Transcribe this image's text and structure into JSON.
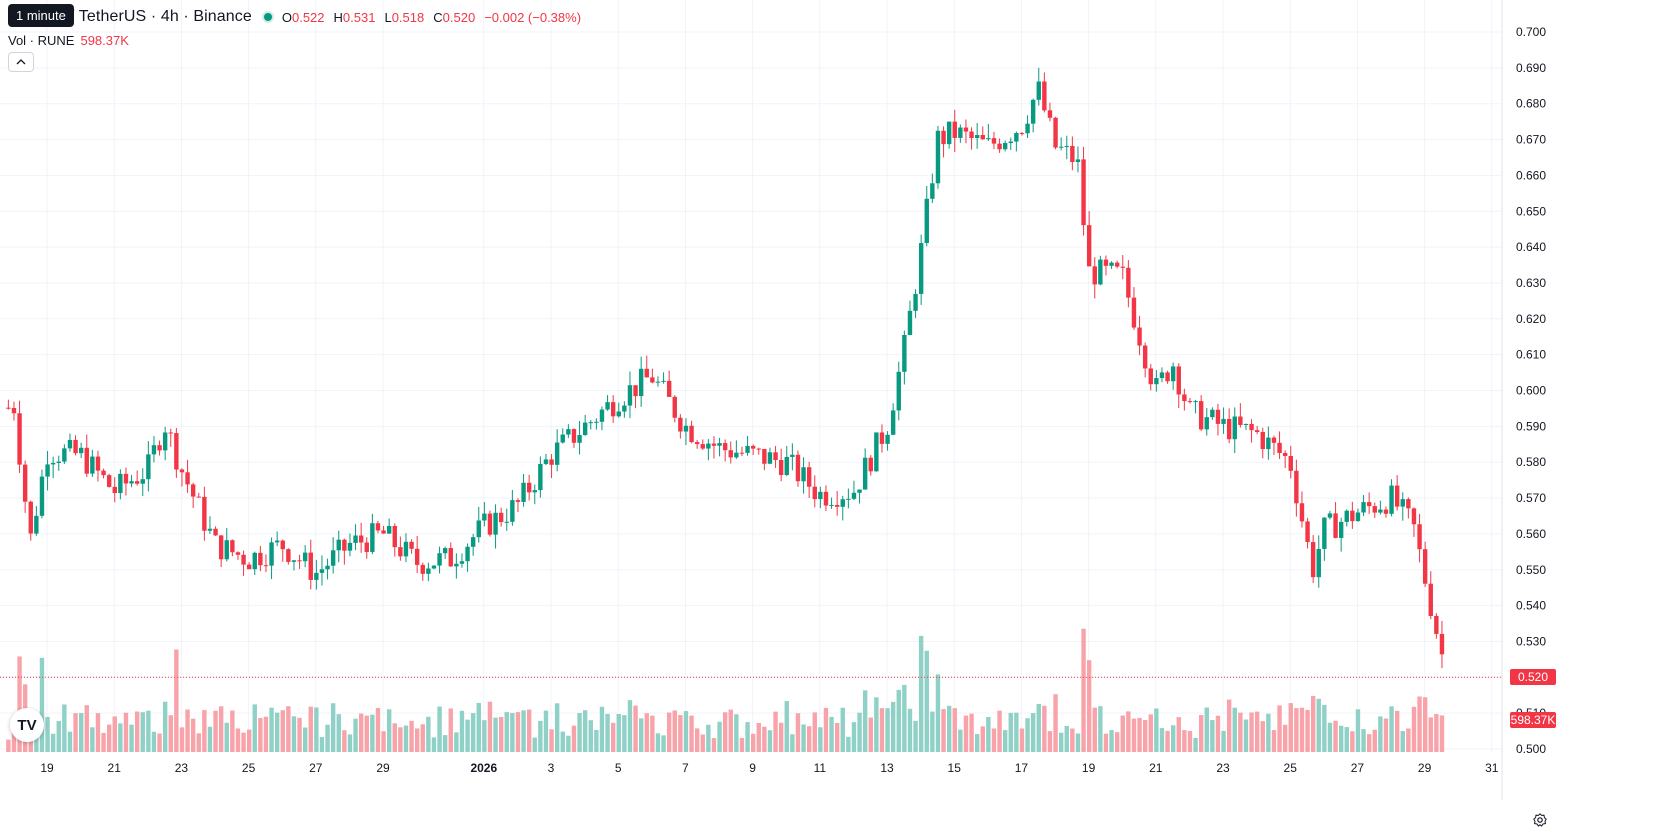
{
  "header": {
    "pair_title": "/ TetherUS · 4h · Binance",
    "tooltip": "1 minute",
    "ohlc": [
      {
        "key": "O",
        "value": "0.522"
      },
      {
        "key": "H",
        "value": "0.531"
      },
      {
        "key": "L",
        "value": "0.518"
      },
      {
        "key": "C",
        "value": "0.520"
      }
    ],
    "change": "−0.002 (−0.38%)",
    "status_color": "#089981"
  },
  "volume_legend": {
    "label": "Vol · RUNE",
    "value": "598.37K"
  },
  "collapse_icon": "chevron-up-icon",
  "logo_text": "TV",
  "price_tags": {
    "last_price": "0.520",
    "last_volume": "598.37K"
  },
  "colors": {
    "up": "#089981",
    "down": "#F23645",
    "vol_up": "#8fd1c6",
    "vol_down": "#f7a3a9",
    "grid": "#f0f3fa"
  },
  "chart_data": {
    "type": "candlestick",
    "symbol": "RUNE/USDT",
    "interval": "4h",
    "exchange": "Binance",
    "ylim": [
      0.5,
      0.7
    ],
    "y_ticks": [
      "0.700",
      "0.690",
      "0.680",
      "0.670",
      "0.660",
      "0.650",
      "0.640",
      "0.630",
      "0.620",
      "0.610",
      "0.600",
      "0.590",
      "0.580",
      "0.570",
      "0.560",
      "0.550",
      "0.540",
      "0.530",
      "0.520",
      "0.510",
      "0.500"
    ],
    "x_ticks": [
      "19",
      "21",
      "23",
      "25",
      "27",
      "29",
      "2026",
      "3",
      "5",
      "7",
      "9",
      "11",
      "13",
      "15",
      "17",
      "19",
      "21",
      "23",
      "25",
      "27",
      "29",
      "31"
    ],
    "close_anchors": [
      {
        "x": "Dec 17",
        "close": 0.585
      },
      {
        "x": "Dec 18",
        "close": 0.597
      },
      {
        "x": "Dec 18 12:00",
        "close": 0.558
      },
      {
        "x": "Dec 19",
        "close": 0.583
      },
      {
        "x": "Dec 20",
        "close": 0.582
      },
      {
        "x": "Dec 21",
        "close": 0.572
      },
      {
        "x": "Dec 22",
        "close": 0.578
      },
      {
        "x": "Dec 22 12:00",
        "close": 0.591
      },
      {
        "x": "Dec 23",
        "close": 0.578
      },
      {
        "x": "Dec 24",
        "close": 0.557
      },
      {
        "x": "Dec 25",
        "close": 0.553
      },
      {
        "x": "Dec 26",
        "close": 0.557
      },
      {
        "x": "Dec 27",
        "close": 0.549
      },
      {
        "x": "Dec 28",
        "close": 0.557
      },
      {
        "x": "Dec 29",
        "close": 0.56
      },
      {
        "x": "Dec 30",
        "close": 0.552
      },
      {
        "x": "Dec 31",
        "close": 0.553
      },
      {
        "x": "Jan 1",
        "close": 0.562
      },
      {
        "x": "Jan 2",
        "close": 0.568
      },
      {
        "x": "Jan 3",
        "close": 0.582
      },
      {
        "x": "Jan 4",
        "close": 0.59
      },
      {
        "x": "Jan 5",
        "close": 0.598
      },
      {
        "x": "Jan 6",
        "close": 0.604
      },
      {
        "x": "Jan 7",
        "close": 0.59
      },
      {
        "x": "Jan 8",
        "close": 0.584
      },
      {
        "x": "Jan 9",
        "close": 0.582
      },
      {
        "x": "Jan 10",
        "close": 0.58
      },
      {
        "x": "Jan 11",
        "close": 0.571
      },
      {
        "x": "Jan 12",
        "close": 0.572
      },
      {
        "x": "Jan 13",
        "close": 0.59
      },
      {
        "x": "Jan 13 12:00",
        "close": 0.611
      },
      {
        "x": "Jan 14",
        "close": 0.638
      },
      {
        "x": "Jan 14 12:00",
        "close": 0.67
      },
      {
        "x": "Jan 15",
        "close": 0.672
      },
      {
        "x": "Jan 16",
        "close": 0.668
      },
      {
        "x": "Jan 17",
        "close": 0.674
      },
      {
        "x": "Jan 17 12:00",
        "close": 0.684
      },
      {
        "x": "Jan 18",
        "close": 0.668
      },
      {
        "x": "Jan 18 16:00",
        "close": 0.664
      },
      {
        "x": "Jan 19",
        "close": 0.633
      },
      {
        "x": "Jan 20",
        "close": 0.632
      },
      {
        "x": "Jan 21",
        "close": 0.6
      },
      {
        "x": "Jan 21 12:00",
        "close": 0.608
      },
      {
        "x": "Jan 22",
        "close": 0.594
      },
      {
        "x": "Jan 23",
        "close": 0.59
      },
      {
        "x": "Jan 24",
        "close": 0.588
      },
      {
        "x": "Jan 25",
        "close": 0.58
      },
      {
        "x": "Jan 25 16:00",
        "close": 0.55
      },
      {
        "x": "Jan 26",
        "close": 0.561
      },
      {
        "x": "Jan 27",
        "close": 0.566
      },
      {
        "x": "Jan 28",
        "close": 0.57
      },
      {
        "x": "Jan 28 16:00",
        "close": 0.562
      },
      {
        "x": "Jan 29",
        "close": 0.548
      },
      {
        "x": "Jan 29 16:00",
        "close": 0.52
      }
    ],
    "last": {
      "open": 0.522,
      "high": 0.531,
      "low": 0.518,
      "close": 0.52,
      "volume": "598.37K"
    }
  }
}
